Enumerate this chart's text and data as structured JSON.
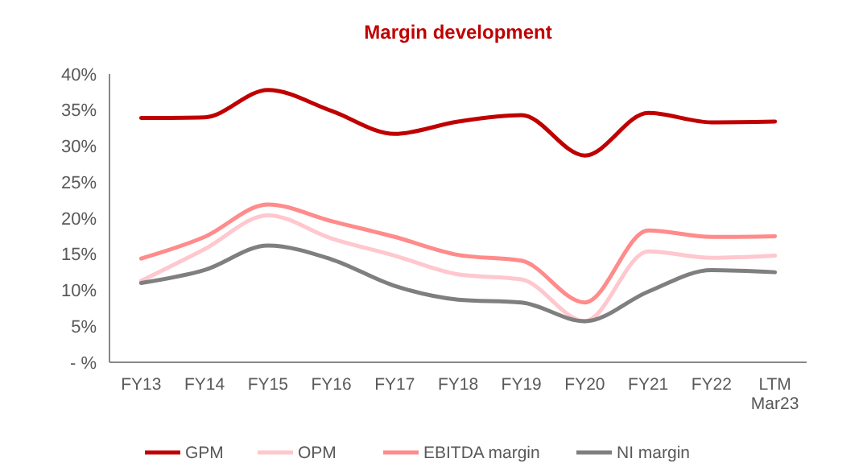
{
  "chart_data": {
    "type": "line",
    "title": "Margin development",
    "categories": [
      "FY13",
      "FY14",
      "FY15",
      "FY16",
      "FY17",
      "FY18",
      "FY19",
      "FY20",
      "FY21",
      "FY22",
      "LTM Mar23"
    ],
    "series": [
      {
        "name": "GPM",
        "color": "#c00000",
        "values": [
          33.9,
          34.0,
          37.8,
          34.9,
          31.7,
          33.4,
          34.3,
          28.7,
          34.6,
          33.3,
          33.4
        ]
      },
      {
        "name": "OPM",
        "color": "#ffc7ce",
        "values": [
          11.3,
          15.7,
          20.4,
          17.2,
          14.8,
          12.2,
          11.5,
          5.7,
          15.4,
          14.5,
          14.8
        ]
      },
      {
        "name": "EBITDA margin",
        "color": "#ff8b8b",
        "values": [
          14.4,
          17.4,
          21.9,
          19.6,
          17.4,
          14.9,
          14.1,
          8.3,
          18.3,
          17.4,
          17.5
        ]
      },
      {
        "name": "NI margin",
        "color": "#7f7f7f",
        "values": [
          11.0,
          12.8,
          16.2,
          14.3,
          10.6,
          8.7,
          8.3,
          5.7,
          9.8,
          12.8,
          12.5
        ]
      }
    ],
    "ylim": [
      0,
      40
    ],
    "yticks": [
      {
        "value": 0,
        "label": "- %"
      },
      {
        "value": 5,
        "label": "5%"
      },
      {
        "value": 10,
        "label": "10%"
      },
      {
        "value": 15,
        "label": "15%"
      },
      {
        "value": 20,
        "label": "20%"
      },
      {
        "value": 25,
        "label": "25%"
      },
      {
        "value": 30,
        "label": "30%"
      },
      {
        "value": 35,
        "label": "35%"
      },
      {
        "value": 40,
        "label": "40%"
      }
    ],
    "grid": false,
    "legend": "bottom",
    "marker": "none",
    "line_style": "solid"
  }
}
